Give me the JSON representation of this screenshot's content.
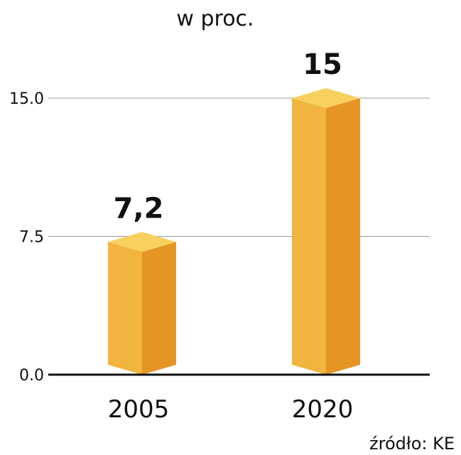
{
  "chart_data": {
    "type": "bar",
    "title": "w proc.",
    "categories": [
      "2005",
      "2020"
    ],
    "values": [
      7.2,
      15
    ],
    "value_labels": [
      "7,2",
      "15"
    ],
    "ylim": [
      0,
      15
    ],
    "yticks": [
      0,
      7.5,
      15
    ],
    "ytick_labels": [
      "0.0",
      "7.5",
      "15.0"
    ],
    "xlabel": "",
    "ylabel": "",
    "grid": true,
    "source": "źródło: KE",
    "colors": {
      "bar_front": "#F1B53F",
      "bar_side": "#E59523",
      "bar_top": "#F8D060",
      "gridline": "#9a9a9a",
      "baseline": "#111111"
    }
  }
}
